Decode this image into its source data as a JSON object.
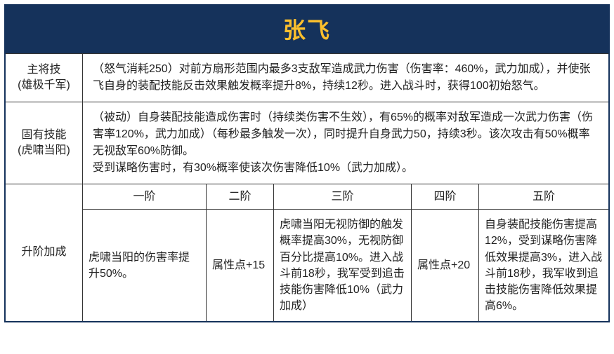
{
  "colors": {
    "header_bg": "#15325b",
    "header_text": "#fbc02d",
    "border": "#333333",
    "text": "#222222",
    "page_bg": "#ffffff"
  },
  "title": "张飞",
  "mainSkill": {
    "label_line1": "主将技",
    "label_line2": "(雄极千军)",
    "desc": "（怒气消耗250）对前方扇形范围内最多3支敌军造成武力伤害（伤害率：460%，武力加成），并使张飞自身的装配技能反击效果触发概率提升8%，持续12秒。进入战斗时，获得100初始怒气。"
  },
  "innateSkill": {
    "label_line1": "固有技能",
    "label_line2": "(虎啸当阳)",
    "desc": "（被动）自身装配技能造成伤害时（持续类伤害不生效），有65%的概率对敌军造成一次武力伤害（伤害率120%，武力加成）（每秒最多触发一次），同时提升自身武力50，持续3秒。该次攻击有50%概率无视敌军60%防御。\n受到谋略伤害时，有30%概率使该次伤害降低10%（武力加成）。"
  },
  "tiers": {
    "label": "升阶加成",
    "headers": [
      "一阶",
      "二阶",
      "三阶",
      "四阶",
      "五阶"
    ],
    "values": [
      "虎啸当阳的伤害率提升50%。",
      "属性点+15",
      "虎啸当阳无视防御的触发概率提高30%，无视防御百分比提高10%。进入战斗前18秒，我军受到追击技能伤害降低10%（武力加成）",
      "属性点+20",
      "自身装配技能伤害提高12%，受到谋略伤害降低效果提高3%，进入战斗前18秒，我军收到追击技能伤害降低效果提高6%。"
    ]
  }
}
